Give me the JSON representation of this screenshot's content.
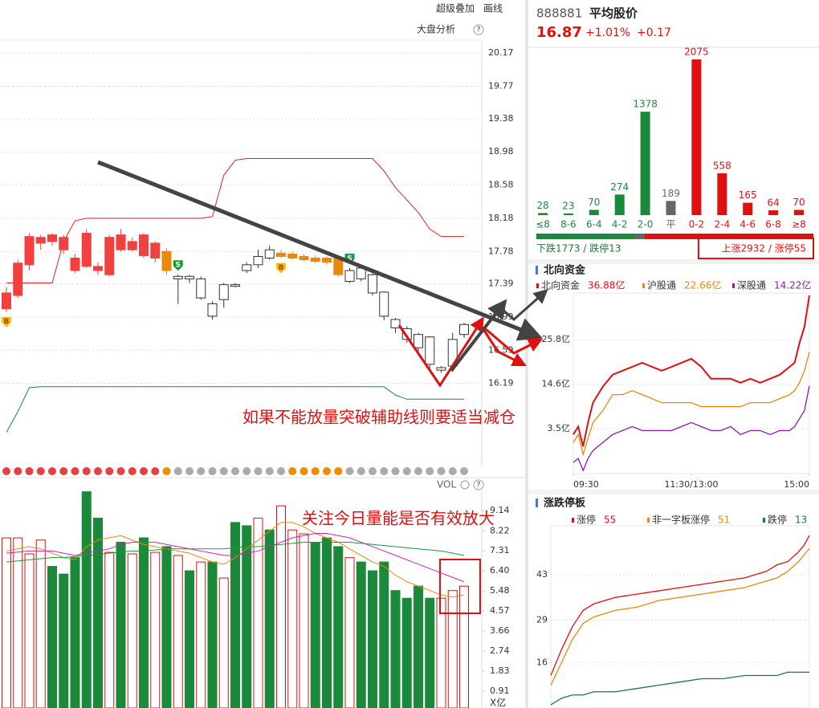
{
  "toolbar": {
    "overlay": "超级叠加",
    "draw": "画线",
    "market": "大盘分析",
    "help": "?"
  },
  "kline": {
    "type": "candlestick",
    "ylim": [
      15.2,
      20.52
    ],
    "yticks": [
      20.17,
      19.77,
      19.38,
      18.98,
      18.58,
      18.18,
      17.78,
      17.39,
      16.99,
      16.59,
      16.19
    ],
    "open": [
      17.09,
      17.25,
      17.62,
      17.88,
      17.9,
      17.8,
      17.55,
      17.6,
      17.55,
      17.5,
      17.8,
      17.8,
      17.73,
      17.7,
      17.78,
      17.45,
      17.48,
      17.22,
      17.0,
      17.2,
      17.36,
      17.55,
      17.62,
      17.7,
      17.72,
      17.7,
      17.68,
      17.66,
      17.65,
      17.7,
      17.42,
      17.45,
      17.28,
      17.0,
      16.86,
      16.72,
      16.62,
      16.42,
      16.35,
      16.4,
      16.78
    ],
    "close": [
      17.28,
      17.64,
      17.96,
      17.95,
      17.98,
      17.95,
      17.7,
      18.0,
      17.6,
      17.95,
      17.98,
      17.9,
      17.98,
      17.88,
      17.55,
      17.48,
      17.45,
      17.45,
      17.15,
      17.38,
      17.38,
      17.62,
      17.72,
      17.8,
      17.76,
      17.75,
      17.72,
      17.7,
      17.7,
      17.5,
      17.55,
      17.58,
      17.5,
      17.29,
      16.96,
      16.85,
      16.78,
      16.75,
      16.38,
      16.72,
      16.9
    ],
    "high": [
      17.35,
      17.68,
      18.0,
      17.98,
      18.0,
      17.98,
      17.75,
      18.05,
      17.65,
      17.98,
      18.05,
      17.95,
      18.0,
      17.9,
      17.82,
      17.5,
      17.5,
      17.48,
      17.18,
      17.4,
      17.4,
      17.65,
      17.8,
      17.85,
      17.8,
      17.78,
      17.75,
      17.73,
      17.72,
      17.72,
      17.58,
      17.6,
      17.52,
      17.3,
      16.98,
      16.88,
      16.8,
      16.76,
      16.4,
      16.8,
      16.92
    ],
    "low": [
      17.05,
      17.22,
      17.55,
      17.8,
      17.85,
      17.75,
      17.52,
      17.58,
      17.5,
      17.48,
      17.78,
      17.78,
      17.7,
      17.65,
      17.5,
      17.15,
      17.4,
      17.2,
      16.96,
      17.1,
      17.35,
      17.52,
      17.58,
      17.68,
      17.7,
      17.68,
      17.66,
      17.64,
      17.62,
      17.48,
      17.4,
      17.42,
      17.25,
      16.95,
      16.8,
      16.68,
      16.58,
      16.35,
      16.32,
      16.38,
      16.74
    ],
    "colors": [
      "#f04040",
      "#f04040",
      "#f04040",
      "#f04040",
      "#f04040",
      "#f04040",
      "#f04040",
      "#f04040",
      "#f04040",
      "#f04040",
      "#f04040",
      "#f04040",
      "#f04040",
      "#f04040",
      "#e8890c",
      "#ffffff",
      "#ffffff",
      "#ffffff",
      "#ffffff",
      "#ffffff",
      "#ffffff",
      "#ffffff",
      "#ffffff",
      "#ffffff",
      "#e8890c",
      "#e8890c",
      "#e8890c",
      "#e8890c",
      "#e8890c",
      "#e8890c",
      "#ffffff",
      "#ffffff",
      "#ffffff",
      "#ffffff",
      "#ffffff",
      "#ffffff",
      "#ffffff",
      "#ffffff",
      "#ffffff",
      "#ffffff",
      "#ffffff"
    ],
    "upper": [
      17.4,
      17.4,
      17.4,
      17.4,
      17.4,
      17.9,
      18.15,
      18.18,
      18.18,
      18.18,
      18.18,
      18.18,
      18.18,
      18.18,
      18.18,
      18.18,
      18.18,
      18.18,
      18.2,
      18.7,
      18.88,
      18.9,
      18.9,
      18.9,
      18.9,
      18.9,
      18.9,
      18.9,
      18.9,
      18.9,
      18.9,
      18.9,
      18.9,
      18.75,
      18.55,
      18.4,
      18.25,
      18.05,
      17.96,
      17.96,
      17.96
    ],
    "upper_color": "#e02020",
    "lower": [
      15.6,
      15.85,
      16.14,
      16.15,
      16.15,
      16.15,
      16.15,
      16.15,
      16.15,
      16.15,
      16.15,
      16.15,
      16.15,
      16.15,
      16.15,
      16.15,
      16.15,
      16.15,
      16.15,
      16.15,
      16.15,
      16.15,
      16.15,
      16.15,
      16.15,
      16.15,
      16.15,
      16.15,
      16.15,
      16.15,
      16.15,
      16.15,
      16.15,
      16.15,
      16.05,
      16.0,
      16.0,
      16.0,
      16.0,
      16.0,
      16.0
    ],
    "lower_color": "#1a8a3a",
    "signals": [
      "B",
      null,
      null,
      null,
      null,
      null,
      null,
      null,
      null,
      null,
      null,
      null,
      null,
      null,
      null,
      "S",
      null,
      null,
      null,
      null,
      null,
      null,
      null,
      null,
      "B",
      null,
      null,
      null,
      null,
      null,
      "S",
      null,
      null,
      null,
      null,
      null,
      null,
      null,
      null,
      null,
      null
    ],
    "dot_colors": [
      "#e84040",
      "#e84040",
      "#e84040",
      "#e84040",
      "#e84040",
      "#e84040",
      "#e84040",
      "#e84040",
      "#e84040",
      "#e84040",
      "#e84040",
      "#e84040",
      "#e84040",
      "#e84040",
      "#f08c00",
      "#aaaaaa",
      "#aaaaaa",
      "#aaaaaa",
      "#aaaaaa",
      "#aaaaaa",
      "#aaaaaa",
      "#aaaaaa",
      "#aaaaaa",
      "#aaaaaa",
      "#aaaaaa",
      "#f08c00",
      "#f08c00",
      "#f08c00",
      "#f08c00",
      "#f08c00",
      "#aaaaaa",
      "#aaaaaa",
      "#aaaaaa",
      "#aaaaaa",
      "#aaaaaa",
      "#aaaaaa",
      "#aaaaaa",
      "#aaaaaa",
      "#aaaaaa",
      "#aaaaaa",
      "#aaaaaa"
    ],
    "annotation": "如果不能放量突破辅助线则要适当减仓"
  },
  "volume": {
    "type": "bar",
    "title": "VOL",
    "unit": "X亿",
    "ylim": [
      0.15,
      10.46
    ],
    "yticks": [
      9.14,
      8.22,
      7.31,
      {
        "value": 6.4,
        "label": "6.40"
      },
      5.48,
      4.57,
      3.66,
      2.74,
      1.83,
      0.91
    ],
    "values": [
      7.9,
      7.9,
      7.17,
      7.8,
      6.6,
      6.25,
      7.0,
      10.0,
      8.8,
      7.24,
      7.7,
      7.17,
      7.9,
      7.24,
      7.5,
      7.1,
      6.4,
      6.8,
      6.8,
      6.07,
      8.6,
      8.45,
      8.8,
      8.26,
      9.36,
      8.26,
      8.08,
      7.7,
      7.9,
      7.5,
      7.0,
      6.8,
      6.4,
      6.8,
      5.5,
      5.15,
      5.7,
      5.15,
      5.15,
      5.5,
      5.7
    ],
    "colors": [
      "#ffffff",
      "#ffffff",
      "#ffffff",
      "#ffffff",
      "#1a8a3a",
      "#1a8a3a",
      "#1a8a3a",
      "#1a8a3a",
      "#1a8a3a",
      "#ffffff",
      "#1a8a3a",
      "#ffffff",
      "#1a8a3a",
      "#ffffff",
      "#1a8a3a",
      "#ffffff",
      "#1a8a3a",
      "#ffffff",
      "#1a8a3a",
      "#ffffff",
      "#1a8a3a",
      "#1a8a3a",
      "#ffffff",
      "#1a8a3a",
      "#ffffff",
      "#ffffff",
      "#ffffff",
      "#1a8a3a",
      "#1a8a3a",
      "#1a8a3a",
      "#ffffff",
      "#1a8a3a",
      "#1a8a3a",
      "#1a8a3a",
      "#1a8a3a",
      "#1a8a3a",
      "#1a8a3a",
      "#1a8a3a",
      "#ffffff",
      "#ffffff",
      "#ffffff"
    ],
    "lines": [
      {
        "color": "#e8890c",
        "values": [
          7.3,
          7.4,
          7.5,
          7.4,
          7.2,
          7.0,
          6.9,
          7.5,
          7.8,
          7.9,
          8.0,
          7.8,
          7.6,
          7.5,
          7.4,
          7.3,
          7.2,
          7.0,
          6.8,
          6.7,
          7.0,
          7.4,
          7.8,
          8.2,
          8.6,
          8.6,
          8.4,
          8.1,
          7.9,
          7.7,
          7.4,
          7.1,
          6.8,
          6.6,
          6.2,
          5.9,
          5.7,
          5.5,
          5.3,
          5.2,
          5.3
        ]
      },
      {
        "color": "#d020c0",
        "values": [
          7.2,
          7.25,
          7.3,
          7.3,
          7.3,
          7.2,
          7.1,
          7.2,
          7.3,
          7.4,
          7.6,
          7.7,
          7.7,
          7.7,
          7.6,
          7.5,
          7.4,
          7.3,
          7.2,
          7.1,
          7.1,
          7.2,
          7.3,
          7.5,
          7.7,
          7.9,
          8.0,
          8.1,
          8.1,
          8.0,
          7.9,
          7.7,
          7.5,
          7.3,
          7.1,
          6.9,
          6.7,
          6.5,
          6.3,
          6.1,
          5.9
        ]
      },
      {
        "color": "#1a9a3a",
        "values": [
          6.8,
          6.85,
          6.9,
          6.95,
          7.0,
          7.0,
          7.05,
          7.1,
          7.15,
          7.2,
          7.25,
          7.3,
          7.3,
          7.35,
          7.4,
          7.4,
          7.4,
          7.4,
          7.4,
          7.4,
          7.45,
          7.5,
          7.5,
          7.55,
          7.6,
          7.65,
          7.7,
          7.7,
          7.7,
          7.7,
          7.7,
          7.65,
          7.6,
          7.55,
          7.5,
          7.45,
          7.4,
          7.35,
          7.3,
          7.2,
          7.1
        ]
      }
    ],
    "annotation": "关注今日量能是否有效放大"
  },
  "header": {
    "code": "888881",
    "name": "平均股价",
    "price": "16.87",
    "change_pct": "+1.01%",
    "change": "+0.17"
  },
  "distribution": {
    "type": "bar",
    "categories": [
      "≤8",
      "8-6",
      "6-4",
      "4-2",
      "2-0",
      "平",
      "0-2",
      "2-4",
      "4-6",
      "6-8",
      "≥8"
    ],
    "values": [
      28,
      23,
      70,
      274,
      1378,
      189,
      2075,
      558,
      165,
      64,
      70
    ],
    "colors": [
      "#1a8a3a",
      "#1a8a3a",
      "#1a8a3a",
      "#1a8a3a",
      "#1a8a3a",
      "#666666",
      "#e01010",
      "#e01010",
      "#e01010",
      "#e01010",
      "#e01010"
    ],
    "ylim": [
      0,
      2075
    ],
    "down_summary": "下跌1773 / 跌停13",
    "up_summary": "上涨2932 / 涨停55"
  },
  "north_flow": {
    "type": "line",
    "title": "北向资金",
    "x": [
      0,
      5,
      10,
      15,
      20,
      30,
      40,
      50,
      60,
      70,
      80,
      90,
      100,
      110,
      120,
      130,
      140,
      150,
      160,
      170,
      180,
      190,
      200,
      210,
      220,
      225,
      230,
      235,
      240
    ],
    "xlim": [
      0,
      240
    ],
    "xticks": [
      {
        "value": 0,
        "label": "09:30"
      },
      {
        "value": 120,
        "label": "11:30/13:00"
      },
      {
        "value": 240,
        "label": "15:00"
      }
    ],
    "ylim": [
      -7.8,
      37.5
    ],
    "yticks": [
      {
        "value": 25.8,
        "label": "25.8亿"
      },
      {
        "value": 14.6,
        "label": "14.6亿"
      },
      {
        "value": 3.5,
        "label": "3.5亿"
      }
    ],
    "series": [
      {
        "name": "北向资金",
        "value_label": "36.88亿",
        "color": "#e01010",
        "values": [
          2,
          4,
          -1,
          5,
          10,
          14,
          17,
          18,
          19,
          20,
          19,
          18,
          19,
          20,
          21,
          19,
          16,
          16,
          16,
          15,
          16,
          15,
          16,
          17,
          19,
          20,
          25,
          29,
          36.88
        ]
      },
      {
        "name": "沪股通",
        "value_label": "22.66亿",
        "color": "#e8890c",
        "values": [
          0,
          2,
          -3,
          1,
          5,
          8,
          12,
          12,
          13,
          12,
          11,
          10,
          10,
          10,
          10,
          9,
          9,
          9,
          9,
          9,
          10,
          10,
          10,
          11,
          12,
          13,
          15,
          18,
          22.66
        ]
      },
      {
        "name": "深股通",
        "value_label": "14.22亿",
        "color": "#8a1aaa",
        "values": [
          -5,
          -4,
          -7,
          -4,
          -2,
          0,
          2,
          3,
          4,
          3,
          3,
          3,
          3,
          4,
          5,
          4,
          3,
          3,
          4,
          2,
          3,
          3,
          2,
          3,
          3,
          4,
          6,
          8,
          14.22
        ]
      }
    ]
  },
  "limit_board": {
    "type": "line",
    "title": "涨跌停板",
    "x": [
      0,
      10,
      20,
      30,
      40,
      60,
      80,
      100,
      120,
      140,
      160,
      180,
      200,
      210,
      220,
      230,
      235,
      240
    ],
    "xlim": [
      0,
      240
    ],
    "ylim": [
      2,
      58
    ],
    "yticks": [
      43,
      29,
      16
    ],
    "series": [
      {
        "name": "涨停",
        "total": 55,
        "color": "#e01010",
        "values": [
          12,
          20,
          27,
          32,
          34,
          36,
          37,
          38,
          39,
          40,
          41,
          42,
          44,
          46,
          47,
          50,
          52,
          55
        ]
      },
      {
        "name": "非一字板涨停",
        "total": 51,
        "color": "#e8890c",
        "values": [
          9,
          16,
          23,
          28,
          30,
          32,
          33,
          35,
          36,
          37,
          38,
          39,
          41,
          42,
          44,
          47,
          49,
          51
        ]
      },
      {
        "name": "跌停",
        "total": 13,
        "color": "#1a7a3a",
        "values": [
          3,
          5,
          6,
          6,
          7,
          7,
          8,
          9,
          10,
          11,
          11,
          12,
          12,
          12,
          13,
          13,
          13,
          13
        ]
      }
    ]
  }
}
